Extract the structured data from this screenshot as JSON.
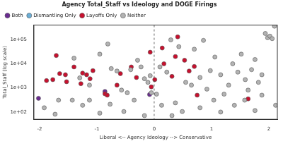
{
  "chart_data": {
    "type": "scatter",
    "title": "Agency Total_Staff vs Ideology and DOGE Firings",
    "x_label": "Liberal <-- Agency Ideology --> Conservative",
    "y_label": "Total_Staff (log scale)",
    "log": "y",
    "legend": "top-left",
    "xlim": [
      -2.1,
      2.15
    ],
    "xticks": [
      -2,
      -1,
      0,
      1,
      2
    ],
    "ylim": [
      50,
      400000
    ],
    "yticks": [
      {
        "value": 100,
        "label": "1e+02"
      },
      {
        "value": 1000,
        "label": "1e+03"
      },
      {
        "value": 10000,
        "label": "1e+04"
      },
      {
        "value": 100000,
        "label": "1e+05"
      }
    ],
    "series": [
      {
        "name": "Both",
        "color": "#6a2c91",
        "x": [
          -2.02,
          -0.86,
          -0.08
        ],
        "values": [
          370,
          710,
          530
        ]
      },
      {
        "name": "Dismantling Only",
        "color": "#6baed6",
        "x": [],
        "values": []
      },
      {
        "name": "Layoffs Only",
        "color": "#c8102e",
        "x": [
          -1.71,
          -1.65,
          -1.88,
          -1.77,
          -1.55,
          -1.53,
          -1.4,
          -1.25,
          -1.18,
          -1.12,
          -1.07,
          -1.28,
          -0.86,
          -0.82,
          -0.65,
          -0.59,
          -0.4,
          -0.31,
          -0.07,
          -0.05,
          0.01,
          0.14,
          0.17,
          0.31,
          0.37,
          0.41,
          0.53,
          0.61,
          0.7,
          1.64,
          0.75
        ],
        "values": [
          22000,
          3900,
          2000,
          2200,
          3500,
          1800,
          7400,
          4100,
          3500,
          2400,
          5200,
          1500,
          570,
          500,
          1300,
          3900,
          7400,
          2700,
          30000,
          1100,
          2200,
          45000,
          10000,
          3000,
          20000,
          130000,
          14000,
          5000,
          7700,
          350,
          500
        ]
      },
      {
        "name": "Neither",
        "color": "#b3b3b3",
        "x": [
          -1.4,
          -1.3,
          -1.13,
          -0.95,
          -0.81,
          -0.75,
          -0.65,
          -0.57,
          -0.47,
          -0.41,
          -0.29,
          -0.23,
          -0.17,
          -0.11,
          -0.07,
          -0.05,
          0.04,
          0.1,
          0.22,
          0.29,
          0.43,
          0.55,
          0.65,
          0.7,
          0.8,
          0.86,
          0.92,
          0.98,
          1.06,
          1.16,
          1.22,
          1.3,
          1.37,
          1.46,
          1.52,
          1.59,
          1.64,
          1.7,
          1.76,
          1.82,
          1.88,
          1.94,
          1.98,
          2.02,
          2.06,
          2.1,
          2.12,
          -1.73,
          -1.25,
          -0.77,
          -0.53,
          -0.35,
          0.13,
          0.37,
          0.49,
          0.8,
          1.04,
          1.16,
          1.4,
          1.58,
          1.88,
          -1.13,
          -0.95,
          -0.17,
          0.31,
          1.76,
          -1.43,
          -1.67,
          -1.92
        ],
        "values": [
          17000,
          2600,
          1300,
          25000,
          66000,
          6300,
          5000,
          810,
          630,
          5700,
          14000,
          7400,
          2400,
          1700,
          3200,
          630,
          550,
          7400,
          4500,
          98000,
          51000,
          1700,
          1300,
          40000,
          2700,
          93000,
          890,
          5200,
          19000,
          3500,
          550,
          1300,
          10000,
          4500,
          25000,
          2200,
          810,
          5700,
          15000,
          1700,
          3500,
          180000,
          120000,
          140000,
          110000,
          360000,
          190,
          81,
          190,
          210,
          105,
          310,
          190,
          240,
          105,
          150,
          310,
          100,
          190,
          310,
          500,
          310,
          90,
          71,
          71,
          115,
          310,
          310,
          150
        ]
      }
    ]
  }
}
